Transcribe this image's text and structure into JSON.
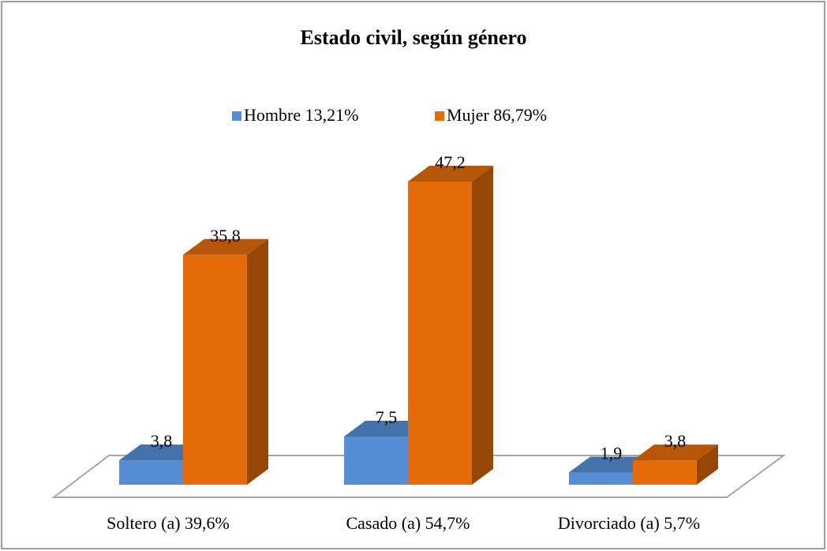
{
  "chart_data": {
    "type": "bar3d",
    "title": "Estado civil, según género",
    "categories": [
      "Soltero (a) 39,6%",
      "Casado (a) 54,7%",
      "Divorciado (a)  5,7%"
    ],
    "series": [
      {
        "name": "Hombre 13,21%",
        "color": "#558ed5",
        "values": [
          3.8,
          7.5,
          1.9
        ],
        "value_labels": [
          "3,8",
          "7,5",
          "1,9"
        ]
      },
      {
        "name": "Mujer 86,79%",
        "color": "#e46c0a",
        "values": [
          35.8,
          47.2,
          3.8
        ],
        "value_labels": [
          "35,8",
          "47,2",
          "3,8"
        ]
      }
    ]
  }
}
